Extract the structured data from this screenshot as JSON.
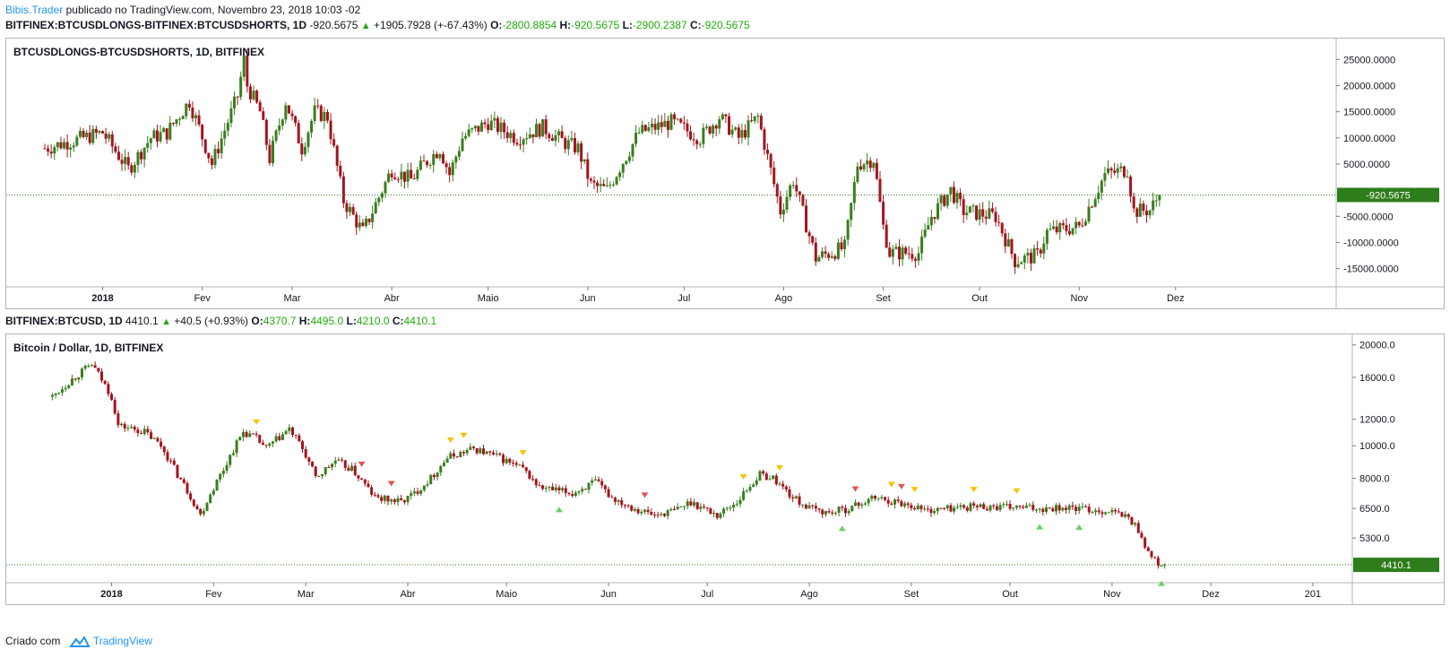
{
  "header": {
    "author": "Bibis.Trader",
    "published_on": "publicado no TradingView.com, Novembro 23, 2018 10:03 -02"
  },
  "top_pane": {
    "symbol_line": "BITFINEX:BTCUSDLONGS-BITFINEX:BTCUSDSHORTS, 1D",
    "last": "-920.5675",
    "change": "+1905.7928 (+-67.43%)",
    "o_label": "O:",
    "o": "-2800.8854",
    "h_label": "H:",
    "h": "-920.5675",
    "l_label": "L:",
    "l": "-2900.2387",
    "c_label": "C:",
    "c": "-920.5675",
    "title": "BTCUSDLONGS-BTCUSDSHORTS, 1D, BITFINEX"
  },
  "bottom_pane": {
    "symbol_line": "BITFINEX:BTCUSD, 1D",
    "last": "4410.1",
    "change": "+40.5 (+0.93%)",
    "o_label": "O:",
    "o": "4370.7",
    "h_label": "H:",
    "h": "4495.0",
    "l_label": "L:",
    "l": "4210.0",
    "c_label": "C:",
    "c": "4410.1",
    "title": "Bitcoin / Dollar, 1D, BITFINEX"
  },
  "footer": {
    "created_with": "Criado com",
    "brand": "TradingView"
  },
  "colors": {
    "up": "#3a7d1f",
    "down": "#a4141e",
    "accent_text": "#22ab0e",
    "brand": "#2196f3",
    "last_label_bg": "#2e7d1c"
  },
  "chart_data": [
    {
      "type": "candlestick",
      "title": "BTCUSDLONGS-BTCUSDSHORTS, 1D, BITFINEX",
      "x_ticks": [
        "2018",
        "Fev",
        "Mar",
        "Abr",
        "Maio",
        "Jun",
        "Jul",
        "Ago",
        "Set",
        "Out",
        "Nov",
        "Dez"
      ],
      "x_tick_days": [
        18,
        49,
        77,
        108,
        138,
        169,
        199,
        230,
        261,
        291,
        322,
        352
      ],
      "y_ticks": [
        25000,
        20000,
        15000,
        10000,
        5000,
        -5000,
        -10000,
        -15000
      ],
      "y_tick_labels": [
        "25000.0000",
        "20000.0000",
        "15000.0000",
        "10000.0000",
        "5000.0000",
        "-5000.0000",
        "-10000.0000",
        "-15000.0000"
      ],
      "ylim": [
        -18500,
        29000
      ],
      "xlim": [
        -12,
        402
      ],
      "last_value": -920.5675,
      "last_value_label": "-920.5675",
      "path_days": [
        0,
        18,
        26,
        33,
        38,
        45,
        52,
        60,
        62,
        63,
        67,
        70,
        75,
        80,
        84,
        88,
        93,
        99,
        108,
        114,
        118,
        123,
        126,
        130,
        138,
        147,
        155,
        162,
        166,
        170,
        175,
        185,
        195,
        204,
        210,
        216,
        222,
        229,
        233,
        240,
        249,
        253,
        258,
        261,
        263,
        272,
        276,
        282,
        284,
        286,
        296,
        302,
        309,
        312,
        322,
        330,
        337,
        339,
        344,
        347
      ],
      "path_values": [
        8000,
        11000,
        4000,
        10000,
        11000,
        17000,
        5000,
        18000,
        25000,
        20000,
        15000,
        6000,
        17000,
        8000,
        15000,
        14000,
        -2000,
        -8000,
        4000,
        2000,
        5000,
        8000,
        3000,
        10000,
        13000,
        10000,
        12000,
        9000,
        8000,
        1000,
        0,
        11000,
        13000,
        10000,
        14000,
        10000,
        14000,
        -4000,
        2000,
        -13000,
        -11000,
        5000,
        6000,
        -7000,
        -12000,
        -12000,
        -5000,
        0,
        -2000,
        -4000,
        -5000,
        -13500,
        -12500,
        -8000,
        -7000,
        3000,
        4000,
        -4000,
        -3800,
        -920
      ]
    },
    {
      "type": "candlestick",
      "title": "Bitcoin / Dollar, 1D, BITFINEX",
      "x_ticks": [
        "2018",
        "Fev",
        "Mar",
        "Abr",
        "Maio",
        "Jun",
        "Jul",
        "Ago",
        "Set",
        "Out",
        "Nov",
        "Dez",
        "201"
      ],
      "x_tick_days": [
        18,
        49,
        77,
        108,
        138,
        169,
        199,
        230,
        261,
        291,
        322,
        352,
        383
      ],
      "y_ticks": [
        20000,
        16000,
        12000,
        10000,
        8000,
        6500,
        5300
      ],
      "y_tick_labels": [
        "20000.0",
        "16000.0",
        "12000.0",
        "10000.0",
        "8000.0",
        "6500.0",
        "5300.0"
      ],
      "y_scale": "log",
      "ylim": [
        3900,
        21500
      ],
      "xlim": [
        -14,
        395
      ],
      "last_value": 4410.1,
      "last_value_label": "4410.1",
      "path_days": [
        0,
        5,
        12,
        18,
        20,
        28,
        33,
        38,
        45,
        52,
        58,
        62,
        65,
        72,
        76,
        80,
        86,
        91,
        98,
        106,
        110,
        115,
        120,
        128,
        136,
        143,
        148,
        158,
        165,
        170,
        177,
        183,
        189,
        194,
        202,
        208,
        215,
        219,
        225,
        230,
        236,
        242,
        250,
        262,
        266,
        272,
        280,
        290,
        300,
        305,
        311,
        318,
        322,
        327,
        330,
        333,
        336,
        338
      ],
      "path_values": [
        14000,
        15500,
        17500,
        14000,
        11500,
        11000,
        10000,
        8200,
        6200,
        8500,
        11000,
        10500,
        9800,
        11200,
        9800,
        8000,
        9000,
        8500,
        7000,
        6800,
        7200,
        8000,
        9200,
        9800,
        9200,
        8500,
        7500,
        7200,
        7800,
        7000,
        6500,
        6200,
        6400,
        6800,
        6200,
        6800,
        8200,
        8000,
        7000,
        6500,
        6300,
        6500,
        7000,
        6600,
        6400,
        6500,
        6600,
        6550,
        6500,
        6550,
        6500,
        6400,
        6350,
        6100,
        5600,
        4800,
        4400,
        4410
      ],
      "signals": [
        {
          "day": 62,
          "type": "down",
          "color": "yellow"
        },
        {
          "day": 94,
          "type": "down",
          "color": "red"
        },
        {
          "day": 103,
          "type": "down",
          "color": "red"
        },
        {
          "day": 121,
          "type": "down",
          "color": "yellow"
        },
        {
          "day": 125,
          "type": "down",
          "color": "yellow"
        },
        {
          "day": 143,
          "type": "down",
          "color": "yellow"
        },
        {
          "day": 154,
          "type": "up",
          "color": "green"
        },
        {
          "day": 180,
          "type": "down",
          "color": "red"
        },
        {
          "day": 210,
          "type": "down",
          "color": "yellow"
        },
        {
          "day": 221,
          "type": "down",
          "color": "yellow"
        },
        {
          "day": 244,
          "type": "down",
          "color": "red"
        },
        {
          "day": 240,
          "type": "up",
          "color": "green"
        },
        {
          "day": 255,
          "type": "down",
          "color": "yellow"
        },
        {
          "day": 258,
          "type": "down",
          "color": "red"
        },
        {
          "day": 262,
          "type": "down",
          "color": "yellow"
        },
        {
          "day": 280,
          "type": "down",
          "color": "yellow"
        },
        {
          "day": 293,
          "type": "down",
          "color": "yellow"
        },
        {
          "day": 300,
          "type": "up",
          "color": "green"
        },
        {
          "day": 312,
          "type": "up",
          "color": "green"
        },
        {
          "day": 337,
          "type": "up",
          "color": "green"
        }
      ]
    }
  ]
}
